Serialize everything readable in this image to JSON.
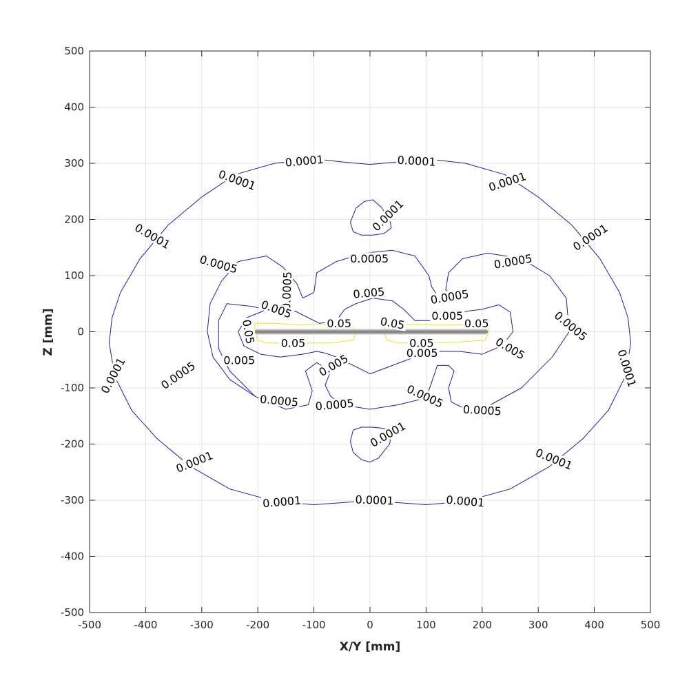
{
  "chart_data": {
    "type": "contour",
    "xlabel": "X/Y [mm]",
    "ylabel": "Z [mm]",
    "xlim": [
      -500,
      500
    ],
    "ylim": [
      -500,
      500
    ],
    "xticks": [
      -500,
      -400,
      -300,
      -200,
      -100,
      0,
      100,
      200,
      300,
      400,
      500
    ],
    "yticks": [
      -500,
      -400,
      -300,
      -200,
      -100,
      0,
      100,
      200,
      300,
      400,
      500
    ],
    "xtick_labels": [
      "-500",
      "-400",
      "-300",
      "-200",
      "-100",
      "0",
      "100",
      "200",
      "300",
      "400",
      "500"
    ],
    "ytick_labels": [
      "-500",
      "-400",
      "-300",
      "-200",
      "-100",
      "0",
      "100",
      "200",
      "300",
      "400",
      "500"
    ],
    "grid": true,
    "colors": {
      "low_levels": "#1c1ca8",
      "high_levels": "#e6e61a",
      "axis": "#262626",
      "grid": "#e3e3e3",
      "conductor": "#777777"
    },
    "conductor": {
      "x_range": [
        -205,
        210
      ],
      "z": 0
    },
    "levels": [
      {
        "name": "0.0001",
        "color": "#1c1ca8",
        "curves": [
          [
            [
              0,
              298
            ],
            [
              45,
              302
            ],
            [
              100,
              308
            ],
            [
              170,
              300
            ],
            [
              240,
              280
            ],
            [
              300,
              240
            ],
            [
              360,
              190
            ],
            [
              410,
              130
            ],
            [
              445,
              70
            ],
            [
              460,
              25
            ],
            [
              465,
              -20
            ],
            [
              455,
              -80
            ],
            [
              425,
              -140
            ],
            [
              380,
              -190
            ],
            [
              320,
              -240
            ],
            [
              250,
              -280
            ],
            [
              170,
              -302
            ],
            [
              100,
              -308
            ],
            [
              30,
              -303
            ],
            [
              0,
              -302
            ],
            [
              -30,
              -303
            ],
            [
              -100,
              -308
            ],
            [
              -170,
              -302
            ],
            [
              -250,
              -280
            ],
            [
              -320,
              -240
            ],
            [
              -380,
              -190
            ],
            [
              -425,
              -140
            ],
            [
              -455,
              -80
            ],
            [
              -465,
              -20
            ],
            [
              -460,
              25
            ],
            [
              -445,
              70
            ],
            [
              -410,
              130
            ],
            [
              -360,
              190
            ],
            [
              -300,
              240
            ],
            [
              -240,
              280
            ],
            [
              -170,
              300
            ],
            [
              -100,
              308
            ],
            [
              -45,
              302
            ],
            [
              0,
              298
            ]
          ],
          [
            [
              -35,
              195
            ],
            [
              -25,
              220
            ],
            [
              -10,
              232
            ],
            [
              5,
              235
            ],
            [
              20,
              222
            ],
            [
              35,
              200
            ],
            [
              38,
              185
            ],
            [
              25,
              175
            ],
            [
              5,
              172
            ],
            [
              -15,
              172
            ],
            [
              -30,
              178
            ],
            [
              -35,
              195
            ]
          ],
          [
            [
              -35,
              -195
            ],
            [
              -30,
              -215
            ],
            [
              -15,
              -228
            ],
            [
              0,
              -232
            ],
            [
              15,
              -225
            ],
            [
              35,
              -200
            ],
            [
              38,
              -180
            ],
            [
              25,
              -172
            ],
            [
              5,
              -170
            ],
            [
              -15,
              -170
            ],
            [
              -30,
              -175
            ],
            [
              -35,
              -195
            ]
          ]
        ],
        "labels": [
          {
            "x": -117,
            "y": 304,
            "angle": 5
          },
          {
            "x": 83,
            "y": 304,
            "angle": -3
          },
          {
            "x": -237,
            "y": 270,
            "angle": -20
          },
          {
            "x": 245,
            "y": 267,
            "angle": 18
          },
          {
            "x": -388,
            "y": 170,
            "angle": -30
          },
          {
            "x": 393,
            "y": 168,
            "angle": 33
          },
          {
            "x": 458,
            "y": -65,
            "angle": -73
          },
          {
            "x": -458,
            "y": -78,
            "angle": 62
          },
          {
            "x": 32,
            "y": 207,
            "angle": 45
          },
          {
            "x": 32,
            "y": -183,
            "angle": 30
          },
          {
            "x": -313,
            "y": -232,
            "angle": 22
          },
          {
            "x": 328,
            "y": -227,
            "angle": -22
          },
          {
            "x": -157,
            "y": -303,
            "angle": 5
          },
          {
            "x": 8,
            "y": -300,
            "angle": -2
          },
          {
            "x": 170,
            "y": -302,
            "angle": -5
          }
        ]
      },
      {
        "name": "0.0005",
        "color": "#1c1ca8",
        "curves": [
          [
            [
              -140,
              30
            ],
            [
              -210,
              45
            ],
            [
              -255,
              50
            ],
            [
              -270,
              20
            ],
            [
              -270,
              -30
            ],
            [
              -250,
              -70
            ],
            [
              -205,
              -115
            ],
            [
              -150,
              -138
            ],
            [
              -110,
              -130
            ],
            [
              -103,
              -105
            ],
            [
              -115,
              -70
            ],
            [
              -95,
              -55
            ],
            [
              -70,
              -70
            ],
            [
              -80,
              -95
            ],
            [
              -70,
              -115
            ],
            [
              -50,
              -130
            ],
            [
              0,
              -138
            ],
            [
              50,
              -130
            ],
            [
              100,
              -118
            ],
            [
              110,
              -90
            ],
            [
              120,
              -60
            ],
            [
              140,
              -60
            ],
            [
              150,
              -70
            ],
            [
              140,
              -100
            ],
            [
              145,
              -125
            ],
            [
              165,
              -135
            ],
            [
              215,
              -130
            ],
            [
              270,
              -100
            ],
            [
              325,
              -45
            ],
            [
              355,
              0
            ],
            [
              350,
              60
            ],
            [
              320,
              100
            ],
            [
              270,
              130
            ],
            [
              210,
              140
            ],
            [
              165,
              130
            ],
            [
              140,
              105
            ],
            [
              135,
              75
            ],
            [
              150,
              60
            ],
            [
              130,
              50
            ],
            [
              110,
              80
            ],
            [
              105,
              100
            ],
            [
              80,
              135
            ],
            [
              40,
              145
            ],
            [
              -10,
              140
            ],
            [
              -60,
              125
            ],
            [
              -95,
              105
            ],
            [
              -100,
              70
            ],
            [
              -120,
              60
            ],
            [
              -130,
              85
            ],
            [
              -155,
              115
            ],
            [
              -185,
              135
            ],
            [
              -235,
              125
            ],
            [
              -265,
              90
            ],
            [
              -285,
              50
            ],
            [
              -290,
              0
            ],
            [
              -280,
              -45
            ],
            [
              -250,
              -85
            ],
            [
              -205,
              -115
            ]
          ]
        ],
        "labels": [
          {
            "x": -270,
            "y": 120,
            "angle": -16
          },
          {
            "x": -1,
            "y": 130,
            "angle": 0
          },
          {
            "x": 255,
            "y": 125,
            "angle": 10
          },
          {
            "x": -148,
            "y": 73,
            "angle": 88
          },
          {
            "x": 142,
            "y": 62,
            "angle": 10
          },
          {
            "x": 358,
            "y": 10,
            "angle": -40
          },
          {
            "x": -342,
            "y": -78,
            "angle": 35
          },
          {
            "x": -162,
            "y": -123,
            "angle": -5
          },
          {
            "x": -63,
            "y": -130,
            "angle": 5
          },
          {
            "x": 98,
            "y": -115,
            "angle": -25
          },
          {
            "x": 200,
            "y": -140,
            "angle": -3
          }
        ]
      },
      {
        "name": "0.005",
        "color": "#1c1ca8",
        "curves": [
          [
            [
              -165,
              50
            ],
            [
              -195,
              35
            ],
            [
              -220,
              25
            ],
            [
              -235,
              0
            ],
            [
              -225,
              -25
            ],
            [
              -195,
              -40
            ],
            [
              -160,
              -45
            ],
            [
              -120,
              -40
            ],
            [
              -95,
              -35
            ],
            [
              -80,
              -38
            ],
            [
              -60,
              -45
            ],
            [
              -40,
              -55
            ],
            [
              0,
              -75
            ],
            [
              40,
              -60
            ],
            [
              80,
              -45
            ],
            [
              115,
              -35
            ],
            [
              160,
              -35
            ],
            [
              200,
              -40
            ],
            [
              235,
              -25
            ],
            [
              255,
              0
            ],
            [
              250,
              35
            ],
            [
              230,
              48
            ],
            [
              200,
              40
            ],
            [
              160,
              35
            ],
            [
              120,
              20
            ],
            [
              80,
              20
            ],
            [
              60,
              40
            ],
            [
              40,
              55
            ],
            [
              5,
              60
            ],
            [
              -25,
              50
            ],
            [
              -45,
              40
            ],
            [
              -60,
              20
            ],
            [
              -90,
              15
            ],
            [
              -130,
              35
            ],
            [
              -165,
              50
            ]
          ]
        ],
        "labels": [
          {
            "x": -167,
            "y": 40,
            "angle": -20
          },
          {
            "x": -2,
            "y": 69,
            "angle": 5
          },
          {
            "x": 138,
            "y": 28,
            "angle": 0
          },
          {
            "x": 250,
            "y": -30,
            "angle": -30
          },
          {
            "x": -233,
            "y": -51,
            "angle": 0
          },
          {
            "x": -65,
            "y": -60,
            "angle": 30
          },
          {
            "x": 93,
            "y": -38,
            "angle": 0
          }
        ]
      },
      {
        "name": "0.05",
        "color": "#e6e61a",
        "curves": [
          [
            [
              -205,
              15
            ],
            [
              -170,
              15
            ],
            [
              -130,
              12
            ],
            [
              -90,
              13
            ],
            [
              -55,
              14
            ],
            [
              -30,
              8
            ],
            [
              -25,
              0
            ],
            [
              -30,
              -15
            ],
            [
              -70,
              -20
            ],
            [
              -130,
              -20
            ],
            [
              -185,
              -20
            ],
            [
              -200,
              -15
            ],
            [
              -205,
              0
            ],
            [
              -205,
              15
            ]
          ],
          [
            [
              25,
              15
            ],
            [
              70,
              13
            ],
            [
              110,
              12
            ],
            [
              150,
              12
            ],
            [
              185,
              13
            ],
            [
              210,
              15
            ],
            [
              212,
              0
            ],
            [
              205,
              -15
            ],
            [
              160,
              -18
            ],
            [
              100,
              -20
            ],
            [
              50,
              -20
            ],
            [
              30,
              -15
            ],
            [
              25,
              0
            ],
            [
              25,
              15
            ]
          ]
        ],
        "labels": [
          {
            "x": -217,
            "y": 0,
            "angle": -80
          },
          {
            "x": -55,
            "y": 15,
            "angle": 0
          },
          {
            "x": 40,
            "y": 15,
            "angle": -10
          },
          {
            "x": 190,
            "y": 15,
            "angle": 0
          },
          {
            "x": -137,
            "y": -20,
            "angle": 0
          },
          {
            "x": 92,
            "y": -20,
            "angle": 0
          }
        ]
      }
    ]
  }
}
